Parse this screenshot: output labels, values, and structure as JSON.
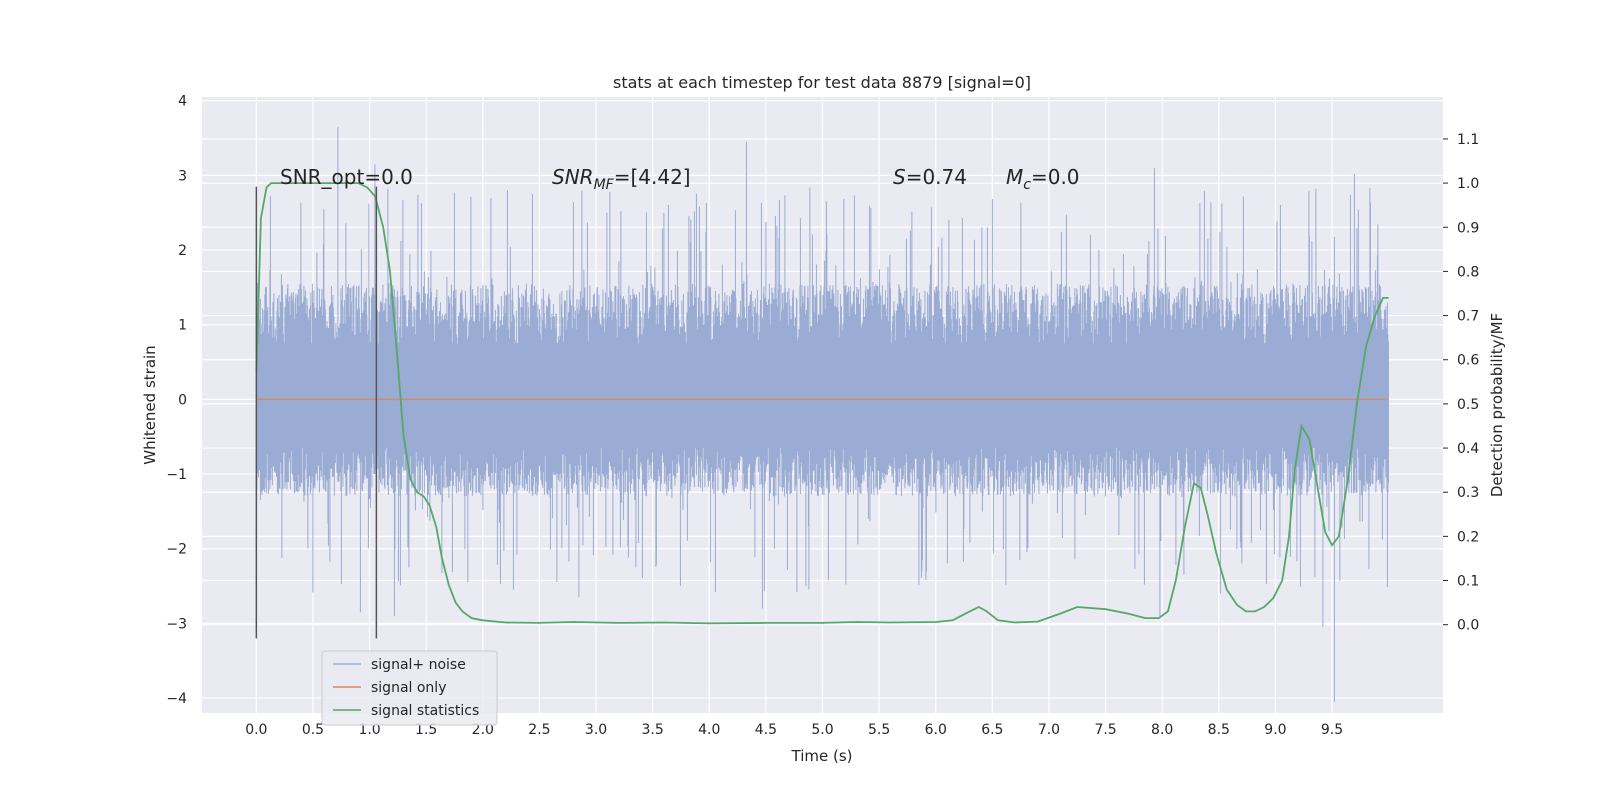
{
  "chart_data": {
    "type": "line",
    "title": "stats at each timestep for test data 8879 [signal=0]",
    "xlabel": "Time (s)",
    "ylabel": "Whitened strain",
    "ylabel_right": "Detection probability/MF",
    "xlim": [
      -0.48,
      10.48
    ],
    "ylim": [
      -4.2,
      4.05
    ],
    "ylim_right": [
      -0.2,
      1.195
    ],
    "x_ticks": [
      "0.0",
      "0.5",
      "1.0",
      "1.5",
      "2.0",
      "2.5",
      "3.0",
      "3.5",
      "4.0",
      "4.5",
      "5.0",
      "5.5",
      "6.0",
      "6.5",
      "7.0",
      "7.5",
      "8.0",
      "8.5",
      "9.0",
      "9.5"
    ],
    "y_ticks": [
      "4",
      "3",
      "2",
      "1",
      "0",
      "−1",
      "−2",
      "−3",
      "−4"
    ],
    "y_ticks_right": [
      "1.1",
      "1.0",
      "0.9",
      "0.8",
      "0.7",
      "0.6",
      "0.5",
      "0.4",
      "0.3",
      "0.2",
      "0.1",
      "0.0"
    ],
    "grid": true,
    "legend_position": "lower-left",
    "annotations": {
      "snr_opt": "SNR_opt=0.0",
      "snr_mf_main": "SNR",
      "snr_mf_sub": "MF",
      "snr_mf_value": "=[4.42]",
      "s_label": "S",
      "s_value": "=0.74",
      "mc_main": "M",
      "mc_sub": "c",
      "mc_value": "=0.0"
    },
    "vertical_markers": {
      "x": [
        0.0,
        1.06
      ],
      "y_range": [
        -3.2,
        2.85
      ]
    },
    "series": [
      {
        "name": "signal+ noise",
        "color": "#9aacd3",
        "x_range": [
          0.0,
          10.0
        ],
        "typical_range": [
          -1.3,
          1.55
        ],
        "extremes": [
          {
            "x": 0.72,
            "y": 3.65
          },
          {
            "x": 1.05,
            "y": 3.15
          },
          {
            "x": 4.33,
            "y": 3.45
          },
          {
            "x": 7.93,
            "y": 3.1
          },
          {
            "x": 9.7,
            "y": 3.02
          },
          {
            "x": 9.52,
            "y": -4.05
          },
          {
            "x": 9.42,
            "y": -3.05
          },
          {
            "x": 0.92,
            "y": -2.85
          },
          {
            "x": 1.22,
            "y": -2.9
          },
          {
            "x": 4.47,
            "y": -2.8
          },
          {
            "x": 7.98,
            "y": -2.9
          },
          {
            "x": 2.85,
            "y": -2.65
          }
        ]
      },
      {
        "name": "signal only",
        "color": "#dd8452",
        "x": [
          0.0,
          10.0
        ],
        "y": [
          0.0,
          0.0
        ]
      },
      {
        "name": "signal statistics",
        "color": "#55a868",
        "axis": "right",
        "x": [
          0.0,
          0.04,
          0.09,
          0.13,
          0.22,
          0.35,
          0.5,
          0.65,
          0.8,
          0.9,
          0.98,
          1.05,
          1.12,
          1.18,
          1.24,
          1.3,
          1.36,
          1.42,
          1.48,
          1.53,
          1.59,
          1.64,
          1.7,
          1.76,
          1.82,
          1.9,
          2.0,
          2.2,
          2.5,
          2.8,
          3.2,
          3.6,
          4.0,
          4.5,
          5.0,
          5.3,
          5.6,
          6.0,
          6.15,
          6.3,
          6.38,
          6.45,
          6.55,
          6.7,
          6.9,
          7.1,
          7.25,
          7.5,
          7.7,
          7.85,
          7.97,
          8.05,
          8.12,
          8.2,
          8.28,
          8.34,
          8.4,
          8.48,
          8.57,
          8.66,
          8.74,
          8.82,
          8.9,
          8.98,
          9.06,
          9.12,
          9.17,
          9.23,
          9.3,
          9.38,
          9.44,
          9.5,
          9.56,
          9.64,
          9.72,
          9.8,
          9.88,
          9.95,
          10.0
        ],
        "y": [
          0.57,
          0.92,
          0.99,
          1.0,
          1.0,
          1.0,
          1.0,
          1.0,
          1.0,
          1.0,
          0.99,
          0.97,
          0.9,
          0.8,
          0.62,
          0.43,
          0.33,
          0.3,
          0.29,
          0.27,
          0.22,
          0.15,
          0.09,
          0.05,
          0.03,
          0.015,
          0.01,
          0.005,
          0.004,
          0.006,
          0.004,
          0.005,
          0.003,
          0.004,
          0.004,
          0.006,
          0.005,
          0.006,
          0.01,
          0.03,
          0.04,
          0.03,
          0.01,
          0.005,
          0.007,
          0.025,
          0.04,
          0.035,
          0.025,
          0.015,
          0.015,
          0.03,
          0.1,
          0.22,
          0.32,
          0.31,
          0.25,
          0.16,
          0.08,
          0.045,
          0.03,
          0.03,
          0.04,
          0.06,
          0.1,
          0.2,
          0.35,
          0.45,
          0.42,
          0.3,
          0.21,
          0.18,
          0.2,
          0.33,
          0.5,
          0.63,
          0.7,
          0.74,
          0.74
        ]
      }
    ]
  }
}
